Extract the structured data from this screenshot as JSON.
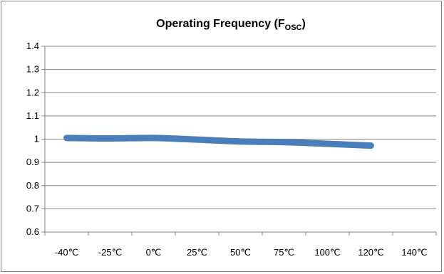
{
  "chart_data": {
    "type": "line",
    "title": {
      "main": "Operating Frequency (F",
      "subscript": "OSC",
      "end": ")"
    },
    "xlabel": "",
    "ylabel": "",
    "categories": [
      "-40℃",
      "-25℃",
      "0℃",
      "25℃",
      "50℃",
      "75℃",
      "100℃",
      "120℃",
      "140℃"
    ],
    "series": [
      {
        "values": [
          1.005,
          1.003,
          1.005,
          0.998,
          0.99,
          0.987,
          0.98,
          0.972,
          null
        ],
        "color": "#4a7ebb"
      }
    ],
    "yticks": [
      "0.6",
      "0.7",
      "0.8",
      "0.9",
      "1",
      "1.1",
      "1.2",
      "1.3",
      "1.4"
    ],
    "ylim": [
      0.6,
      1.4
    ],
    "grid": true,
    "legend": "none"
  }
}
